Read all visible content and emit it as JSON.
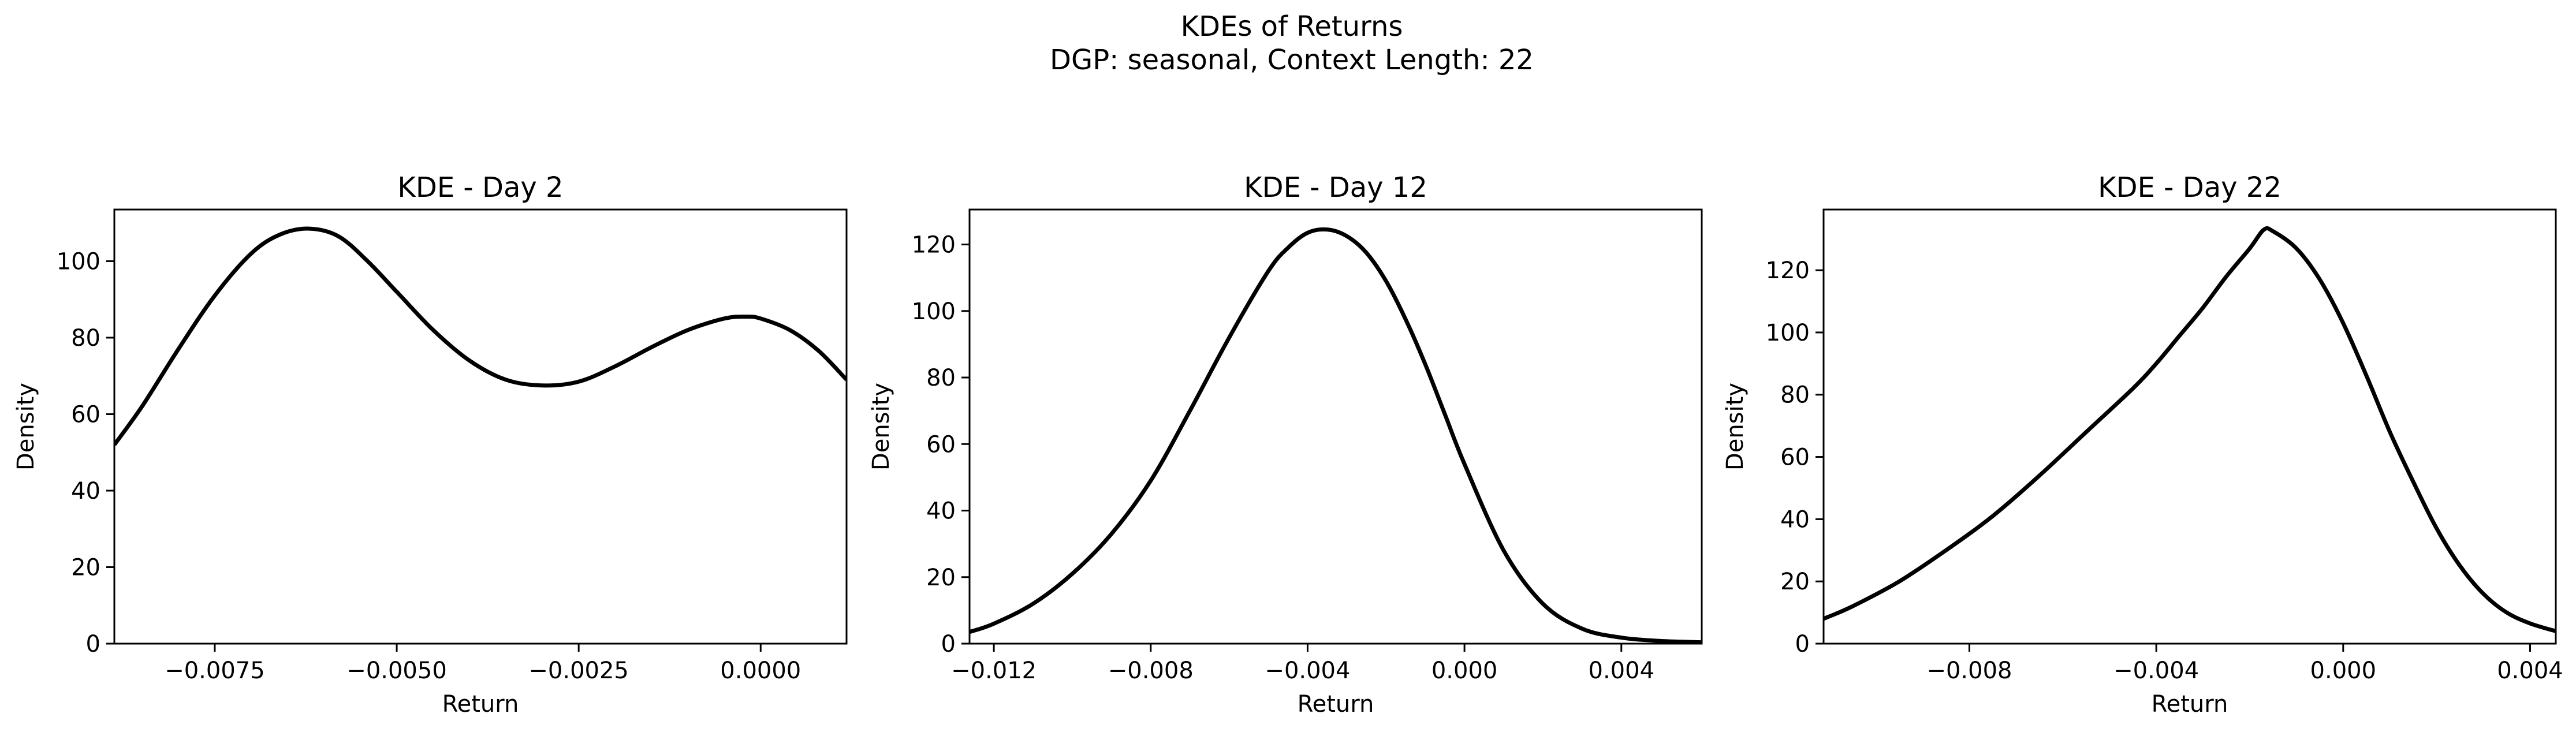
{
  "suptitle": {
    "line1": "KDEs of Returns",
    "line2": "DGP: seasonal, Context Length: 22"
  },
  "chart_data": [
    {
      "type": "line",
      "title": "KDE - Day 2",
      "xlabel": "Return",
      "ylabel": "Density",
      "xlim": [
        -0.00888,
        0.00118
      ],
      "ylim": [
        0,
        113.5
      ],
      "xticks": [
        -0.0075,
        -0.005,
        -0.0025,
        0.0
      ],
      "xtick_labels": [
        "−0.0075",
        "−0.0050",
        "−0.0025",
        "0.0000"
      ],
      "yticks": [
        0,
        20,
        40,
        60,
        80,
        100
      ],
      "ytick_labels": [
        "0",
        "20",
        "40",
        "60",
        "80",
        "100"
      ],
      "grid": false,
      "series": [
        {
          "color": "#000000",
          "x": [
            -0.00888,
            -0.0085,
            -0.008,
            -0.0075,
            -0.007,
            -0.0066,
            -0.0062,
            -0.0058,
            -0.0054,
            -0.005,
            -0.0045,
            -0.004,
            -0.0035,
            -0.003,
            -0.0025,
            -0.002,
            -0.0015,
            -0.001,
            -0.0005,
            -0.0002,
            0.0,
            0.0004,
            0.0008,
            0.00118
          ],
          "y": [
            52,
            62,
            77,
            91,
            102,
            107,
            108.5,
            106.5,
            100,
            92,
            82,
            74,
            69,
            67.5,
            68.5,
            72.5,
            77.5,
            82,
            85,
            85.5,
            85,
            82,
            76.5,
            69
          ]
        }
      ]
    },
    {
      "type": "line",
      "title": "KDE - Day 12",
      "xlabel": "Return",
      "ylabel": "Density",
      "xlim": [
        -0.01262,
        0.00605
      ],
      "ylim": [
        0,
        130.5
      ],
      "xticks": [
        -0.012,
        -0.008,
        -0.004,
        0.0,
        0.004
      ],
      "xtick_labels": [
        "−0.012",
        "−0.008",
        "−0.004",
        "0.000",
        "0.004"
      ],
      "yticks": [
        0,
        20,
        40,
        60,
        80,
        100,
        120
      ],
      "ytick_labels": [
        "0",
        "20",
        "40",
        "60",
        "80",
        "100",
        "120"
      ],
      "grid": false,
      "series": [
        {
          "color": "#000000",
          "x": [
            -0.01262,
            -0.012,
            -0.011,
            -0.01,
            -0.009,
            -0.008,
            -0.007,
            -0.006,
            -0.005,
            -0.0045,
            -0.004,
            -0.0035,
            -0.003,
            -0.0025,
            -0.002,
            -0.0015,
            -0.001,
            -0.0005,
            0.0,
            0.001,
            0.002,
            0.003,
            0.004,
            0.005,
            0.00605
          ],
          "y": [
            3.5,
            6,
            12,
            21,
            33,
            49,
            70,
            92,
            112,
            119,
            123.5,
            124.5,
            122.5,
            117.5,
            109,
            97.5,
            84,
            69,
            54,
            28,
            12,
            4.5,
            1.8,
            0.8,
            0.4
          ]
        }
      ]
    },
    {
      "type": "line",
      "title": "KDE - Day 22",
      "xlabel": "Return",
      "ylabel": "Density",
      "xlim": [
        -0.01112,
        0.00455
      ],
      "ylim": [
        0,
        139.5
      ],
      "xticks": [
        -0.008,
        -0.004,
        0.0,
        0.004
      ],
      "xtick_labels": [
        "−0.008",
        "−0.004",
        "0.000",
        "0.004"
      ],
      "yticks": [
        0,
        20,
        40,
        60,
        80,
        100,
        120
      ],
      "ytick_labels": [
        "0",
        "20",
        "40",
        "60",
        "80",
        "100",
        "120"
      ],
      "grid": false,
      "series": [
        {
          "color": "#000000",
          "x": [
            -0.01112,
            -0.0105,
            -0.0095,
            -0.0085,
            -0.0075,
            -0.0065,
            -0.0055,
            -0.0045,
            -0.004,
            -0.0035,
            -0.003,
            -0.0025,
            -0.002,
            -0.0017,
            -0.0015,
            -0.001,
            -0.0005,
            0.0,
            0.0005,
            0.001,
            0.0015,
            0.002,
            0.0025,
            0.003,
            0.0035,
            0.004,
            0.00455
          ],
          "y": [
            8,
            12,
            20,
            30,
            41,
            54,
            68,
            82,
            90,
            99,
            108,
            118,
            127,
            133,
            132.5,
            127,
            117,
            103,
            86,
            68,
            52,
            37,
            25,
            16,
            10,
            6.5,
            4
          ]
        }
      ]
    }
  ]
}
